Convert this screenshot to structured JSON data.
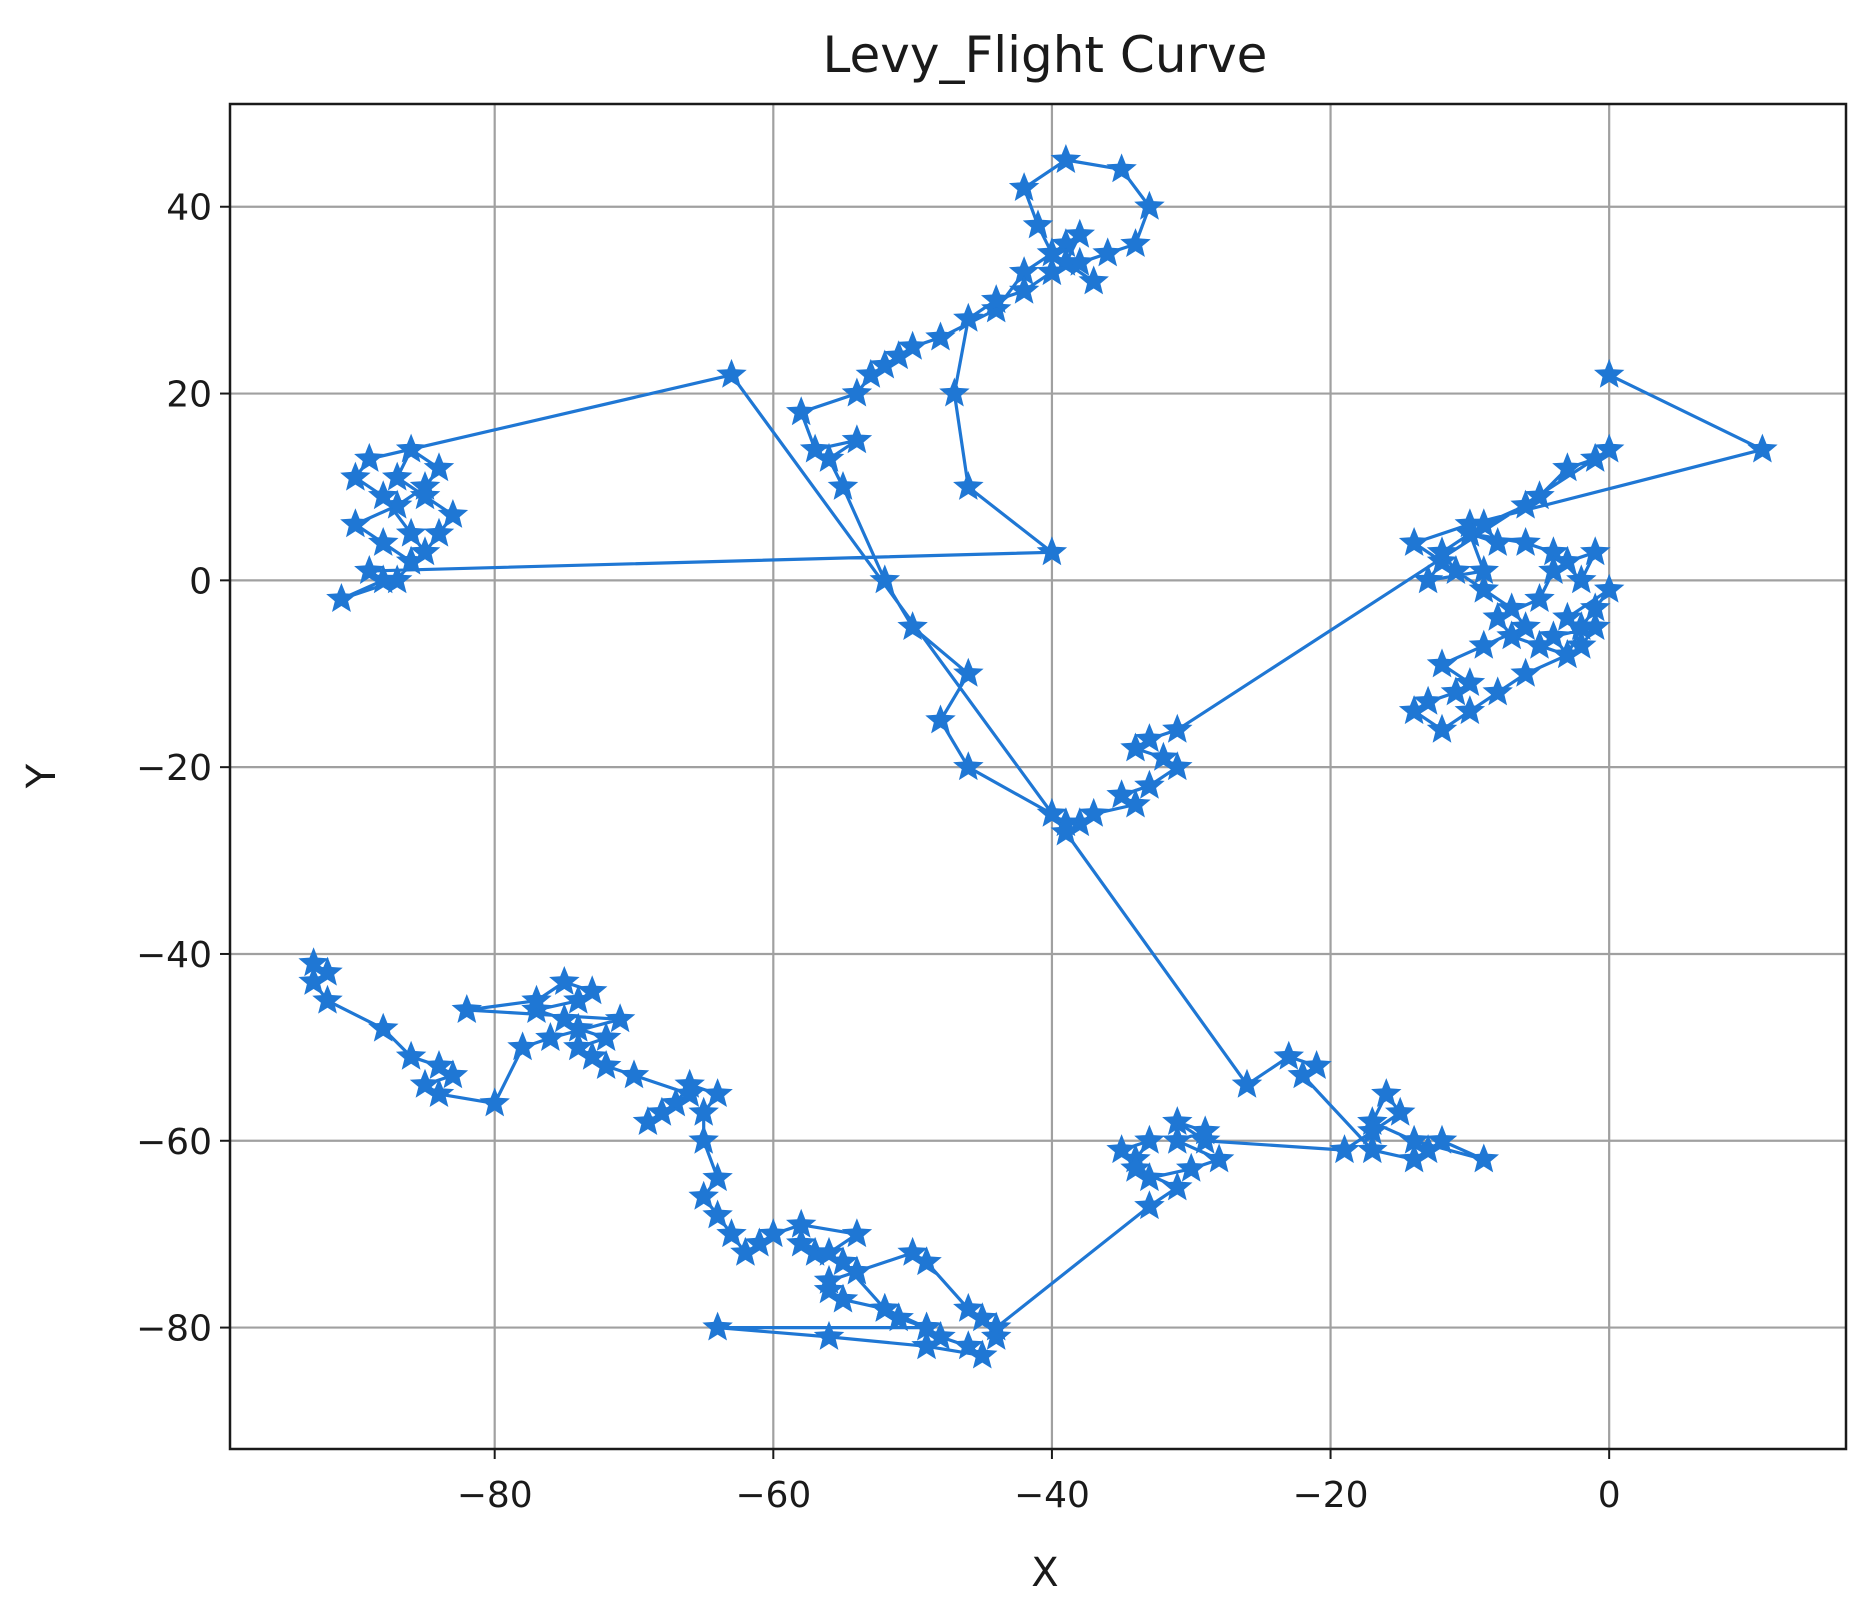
{
  "chart_data": {
    "type": "line",
    "title": "Levy_Flight Curve",
    "xlabel": "X",
    "ylabel": "Y",
    "xlim": [
      -99,
      17
    ],
    "ylim": [
      -93,
      51
    ],
    "xticks": [
      -80,
      -60,
      -40,
      -20,
      0
    ],
    "yticks": [
      40,
      20,
      0,
      -20,
      -40,
      -60,
      -80
    ],
    "xtick_labels": [
      "−80",
      "−60",
      "−40",
      "−20",
      "0"
    ],
    "ytick_labels": [
      "40",
      "20",
      "0",
      "−20",
      "−40",
      "−60",
      "−80"
    ],
    "grid": true,
    "legend": false,
    "marker": "star",
    "color": "#1f77d4",
    "series": [
      {
        "x": [
          0,
          11,
          -10,
          -14,
          -12,
          -13,
          -9,
          -10,
          -6,
          -4,
          -2,
          -1,
          -3,
          -4,
          -5,
          -8,
          -7,
          -5,
          -3,
          -2,
          -1,
          0,
          -3,
          -2,
          -1,
          -4,
          -3,
          -6,
          -8,
          -10,
          -12,
          -14,
          -13,
          -11,
          -10,
          -12,
          -9,
          -6,
          -7,
          -9,
          -11,
          -12,
          -10,
          -8,
          -9,
          -6,
          -5,
          -3,
          -1,
          0,
          -31,
          -33,
          -34,
          -32,
          -31,
          -33,
          -35,
          -34,
          -37,
          -38,
          -39,
          -40,
          -46,
          -48,
          -46,
          -50,
          -52,
          -55,
          -56,
          -54,
          -57,
          -58,
          -54,
          -53,
          -52,
          -51,
          -50,
          -48,
          -44,
          -42,
          -39,
          -38,
          -39,
          -37,
          -40,
          -41,
          -42,
          -39,
          -35,
          -33,
          -34,
          -36,
          -38,
          -40,
          -42,
          -44,
          -46,
          -47,
          -46,
          -40,
          -89,
          -88,
          -91,
          -87,
          -86,
          -88,
          -90,
          -87,
          -85,
          -84,
          -86,
          -87,
          -85,
          -83,
          -84,
          -85,
          -86,
          -88,
          -90,
          -89,
          -63,
          -39,
          -26,
          -23,
          -21,
          -22,
          -17,
          -14,
          -13,
          -12,
          -9,
          -14,
          -17,
          -16,
          -15,
          -17,
          -19,
          -29,
          -31,
          -29,
          -31,
          -28,
          -30,
          -33,
          -34,
          -33,
          -35,
          -34,
          -31,
          -33,
          -44,
          -44,
          -45,
          -46,
          -49,
          -50,
          -54,
          -56,
          -56,
          -55,
          -52,
          -51,
          -49,
          -48,
          -46,
          -45,
          -49,
          -56,
          -64,
          -49,
          -52,
          -55,
          -57,
          -58,
          -56,
          -54,
          -58,
          -60,
          -61,
          -62,
          -63,
          -64,
          -65,
          -64,
          -65,
          -65,
          -64,
          -66,
          -67,
          -68,
          -69,
          -66,
          -70,
          -72,
          -73,
          -74,
          -72,
          -74,
          -75,
          -77,
          -74,
          -73,
          -75,
          -77,
          -82,
          -71,
          -76,
          -78,
          -80,
          -84,
          -85,
          -83,
          -84,
          -86,
          -88,
          -92,
          -93,
          -92,
          -93
        ]
      }
    ],
    "y_values": [
      22,
      14,
      6,
      4,
      2,
      0,
      1,
      5,
      4,
      3,
      0,
      3,
      2,
      1,
      -2,
      -4,
      -6,
      -7,
      -8,
      -5,
      -3,
      -1,
      -4,
      -7,
      -5,
      -6,
      -8,
      -10,
      -12,
      -14,
      -16,
      -14,
      -13,
      -12,
      -11,
      -9,
      -7,
      -5,
      -3,
      -1,
      1,
      3,
      5,
      4,
      6,
      8,
      9,
      12,
      13,
      14,
      -16,
      -17,
      -18,
      -19,
      -20,
      -22,
      -23,
      -24,
      -25,
      -26,
      -26,
      -25,
      -20,
      -15,
      -10,
      -5,
      0,
      10,
      13,
      15,
      14,
      18,
      20,
      22,
      23,
      24,
      25,
      26,
      29,
      33,
      36,
      37,
      34,
      32,
      35,
      38,
      42,
      45,
      44,
      40,
      36,
      35,
      34,
      33,
      31,
      30,
      28,
      20,
      10,
      3,
      1,
      0,
      -2,
      0,
      2,
      4,
      6,
      8,
      10,
      12,
      14,
      11,
      9,
      7,
      5,
      3,
      5,
      9,
      11,
      13,
      22,
      -27,
      -54,
      -51,
      -52,
      -53,
      -61,
      -62,
      -61,
      -60,
      -62,
      -60,
      -58,
      -55,
      -57,
      -59,
      -61,
      -60,
      -58,
      -59,
      -60,
      -62,
      -63,
      -64,
      -62,
      -60,
      -61,
      -63,
      -65,
      -67,
      -80,
      -81,
      -79,
      -78,
      -73,
      -72,
      -74,
      -75,
      -76,
      -77,
      -78,
      -79,
      -80,
      -81,
      -82,
      -83,
      -82,
      -81,
      -80,
      -80,
      -78,
      -73,
      -72,
      -71,
      -72,
      -70,
      -69,
      -70,
      -71,
      -72,
      -70,
      -68,
      -66,
      -64,
      -60,
      -57,
      -55,
      -54,
      -56,
      -57,
      -58,
      -55,
      -53,
      -52,
      -51,
      -50,
      -49,
      -48,
      -47,
      -46,
      -45,
      -44,
      -43,
      -45,
      -46,
      -47,
      -49,
      -50,
      -56,
      -55,
      -54,
      -53,
      -52,
      -51,
      -48,
      -45,
      -43,
      -42,
      -41
    ]
  }
}
